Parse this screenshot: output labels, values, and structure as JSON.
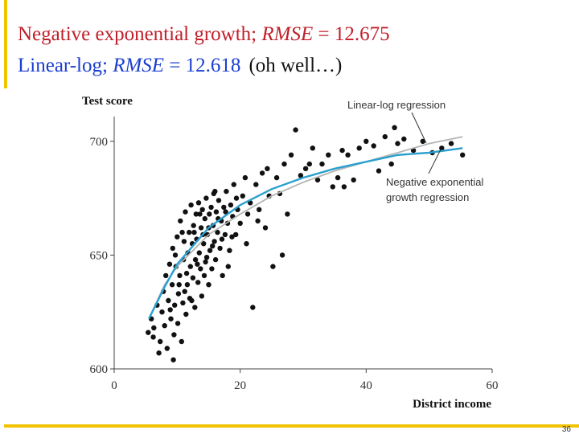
{
  "slide": {
    "line1": {
      "prefix": "Negative exponential growth; ",
      "metric": "RMSE",
      "value": " = 12.675"
    },
    "line2": {
      "prefix": "Linear-log; ",
      "metric": "RMSE",
      "value": " = 12.618",
      "note": "(oh well…)"
    },
    "page_number": "36"
  },
  "colors": {
    "line1_text": "#c0202a",
    "line2_text": "#1a3ed0",
    "accent_frame": "#f2c400",
    "points": "#111111",
    "linear_log_curve": "#b4b4b4",
    "neg_exp_curve": "#2aa0cf"
  },
  "chart_data": {
    "type": "scatter",
    "title": "",
    "xlabel": "District income",
    "ylabel": "Test score",
    "xlim": [
      0,
      60
    ],
    "ylim": [
      600,
      710
    ],
    "x_ticks": [
      "0",
      "20",
      "40",
      "60"
    ],
    "y_ticks": [
      "600",
      "650",
      "700"
    ],
    "grid": false,
    "legend": "none",
    "annotations": [
      {
        "lines": [
          "Linear-log regression"
        ]
      },
      {
        "lines": [
          "Negative exponential",
          "growth regression"
        ]
      }
    ],
    "series": [
      {
        "type": "scatter",
        "points": [
          [
            5.4,
            616
          ],
          [
            5.9,
            622
          ],
          [
            6.3,
            618
          ],
          [
            6.8,
            628
          ],
          [
            7.1,
            607
          ],
          [
            7.3,
            612
          ],
          [
            7.6,
            625
          ],
          [
            7.8,
            634
          ],
          [
            8.0,
            619
          ],
          [
            8.2,
            641
          ],
          [
            8.4,
            609
          ],
          [
            8.6,
            630
          ],
          [
            8.8,
            646
          ],
          [
            9.0,
            622
          ],
          [
            9.2,
            637
          ],
          [
            9.3,
            653
          ],
          [
            9.5,
            615
          ],
          [
            9.6,
            628
          ],
          [
            9.8,
            645
          ],
          [
            10.0,
            658
          ],
          [
            10.1,
            620
          ],
          [
            10.2,
            633
          ],
          [
            10.4,
            641
          ],
          [
            10.5,
            665
          ],
          [
            10.7,
            612
          ],
          [
            10.9,
            629
          ],
          [
            11.0,
            648
          ],
          [
            11.1,
            656
          ],
          [
            11.3,
            669
          ],
          [
            11.4,
            624
          ],
          [
            11.6,
            637
          ],
          [
            11.7,
            651
          ],
          [
            11.9,
            660
          ],
          [
            12.0,
            631
          ],
          [
            12.1,
            645
          ],
          [
            12.2,
            672
          ],
          [
            12.4,
            655
          ],
          [
            12.5,
            640
          ],
          [
            12.6,
            663
          ],
          [
            12.8,
            627
          ],
          [
            12.9,
            648
          ],
          [
            13.0,
            668
          ],
          [
            13.1,
            657
          ],
          [
            13.3,
            638
          ],
          [
            13.4,
            673
          ],
          [
            13.5,
            651
          ],
          [
            13.7,
            644
          ],
          [
            13.8,
            662
          ],
          [
            13.9,
            632
          ],
          [
            14.0,
            670
          ],
          [
            14.2,
            655
          ],
          [
            14.3,
            641
          ],
          [
            14.4,
            666
          ],
          [
            14.6,
            675
          ],
          [
            14.7,
            649
          ],
          [
            14.8,
            659
          ],
          [
            15.0,
            637
          ],
          [
            15.1,
            668
          ],
          [
            15.2,
            652
          ],
          [
            15.4,
            671
          ],
          [
            15.5,
            644
          ],
          [
            15.7,
            663
          ],
          [
            15.8,
            677
          ],
          [
            15.9,
            656
          ],
          [
            16.1,
            648
          ],
          [
            16.2,
            669
          ],
          [
            16.4,
            660
          ],
          [
            16.6,
            674
          ],
          [
            16.8,
            653
          ],
          [
            17.0,
            665
          ],
          [
            17.2,
            641
          ],
          [
            17.4,
            671
          ],
          [
            17.6,
            659
          ],
          [
            17.8,
            678
          ],
          [
            18.0,
            664
          ],
          [
            18.3,
            652
          ],
          [
            18.5,
            672
          ],
          [
            18.8,
            667
          ],
          [
            19.0,
            681
          ],
          [
            19.3,
            659
          ],
          [
            19.6,
            670
          ],
          [
            20.0,
            664
          ],
          [
            20.4,
            676
          ],
          [
            20.8,
            684
          ],
          [
            21.2,
            668
          ],
          [
            21.6,
            673
          ],
          [
            22.0,
            627
          ],
          [
            22.5,
            681
          ],
          [
            23.0,
            670
          ],
          [
            23.5,
            686
          ],
          [
            24.0,
            662
          ],
          [
            24.6,
            676
          ],
          [
            25.2,
            645
          ],
          [
            25.8,
            684
          ],
          [
            26.3,
            677
          ],
          [
            27.0,
            690
          ],
          [
            27.5,
            668
          ],
          [
            28.1,
            694
          ],
          [
            28.8,
            705
          ],
          [
            29.6,
            685
          ],
          [
            30.4,
            688
          ],
          [
            31.5,
            697
          ],
          [
            32.3,
            683
          ],
          [
            33.0,
            690
          ],
          [
            34.0,
            694
          ],
          [
            34.7,
            680
          ],
          [
            35.5,
            684
          ],
          [
            36.2,
            696
          ],
          [
            37.1,
            694
          ],
          [
            38.0,
            683
          ],
          [
            38.9,
            697
          ],
          [
            40.0,
            700
          ],
          [
            41.2,
            698
          ],
          [
            42.0,
            687
          ],
          [
            43.0,
            702
          ],
          [
            44.0,
            690
          ],
          [
            45.0,
            699
          ],
          [
            46.0,
            701
          ],
          [
            47.5,
            696
          ],
          [
            49.0,
            700
          ],
          [
            50.5,
            695
          ],
          [
            52.0,
            697
          ],
          [
            53.5,
            699
          ],
          [
            55.3,
            694
          ],
          [
            6.2,
            614
          ],
          [
            8.9,
            626
          ],
          [
            9.7,
            650
          ],
          [
            10.3,
            637
          ],
          [
            10.8,
            660
          ],
          [
            11.5,
            642
          ],
          [
            12.3,
            630
          ],
          [
            12.7,
            660
          ],
          [
            13.2,
            646
          ],
          [
            13.6,
            668
          ],
          [
            14.1,
            659
          ],
          [
            14.5,
            647
          ],
          [
            15.0,
            662
          ],
          [
            15.6,
            654
          ],
          [
            16.0,
            678
          ],
          [
            16.5,
            666
          ],
          [
            17.1,
            657
          ],
          [
            17.7,
            669
          ],
          [
            18.1,
            645
          ],
          [
            18.7,
            658
          ],
          [
            19.4,
            675
          ],
          [
            21.0,
            655
          ],
          [
            22.8,
            665
          ],
          [
            24.3,
            688
          ],
          [
            26.7,
            650
          ],
          [
            31.0,
            690
          ],
          [
            36.5,
            680
          ],
          [
            44.5,
            706
          ],
          [
            9.4,
            604
          ],
          [
            11.2,
            634
          ]
        ]
      },
      {
        "name": "Linear-log regression",
        "type": "line",
        "x": [
          5.5,
          8,
          10,
          15,
          20,
          25,
          30,
          35,
          40,
          45,
          50,
          55.3
        ],
        "y": [
          622,
          637,
          645,
          659,
          668,
          676,
          682,
          687,
          691,
          695,
          699,
          702
        ]
      },
      {
        "name": "Negative exponential growth regression",
        "type": "line",
        "x": [
          5.5,
          8,
          10,
          15,
          20,
          25,
          30,
          35,
          40,
          45,
          50,
          55.3
        ],
        "y": [
          622,
          636,
          646,
          662,
          672,
          679,
          684,
          688,
          691,
          694,
          695,
          697
        ]
      }
    ]
  }
}
